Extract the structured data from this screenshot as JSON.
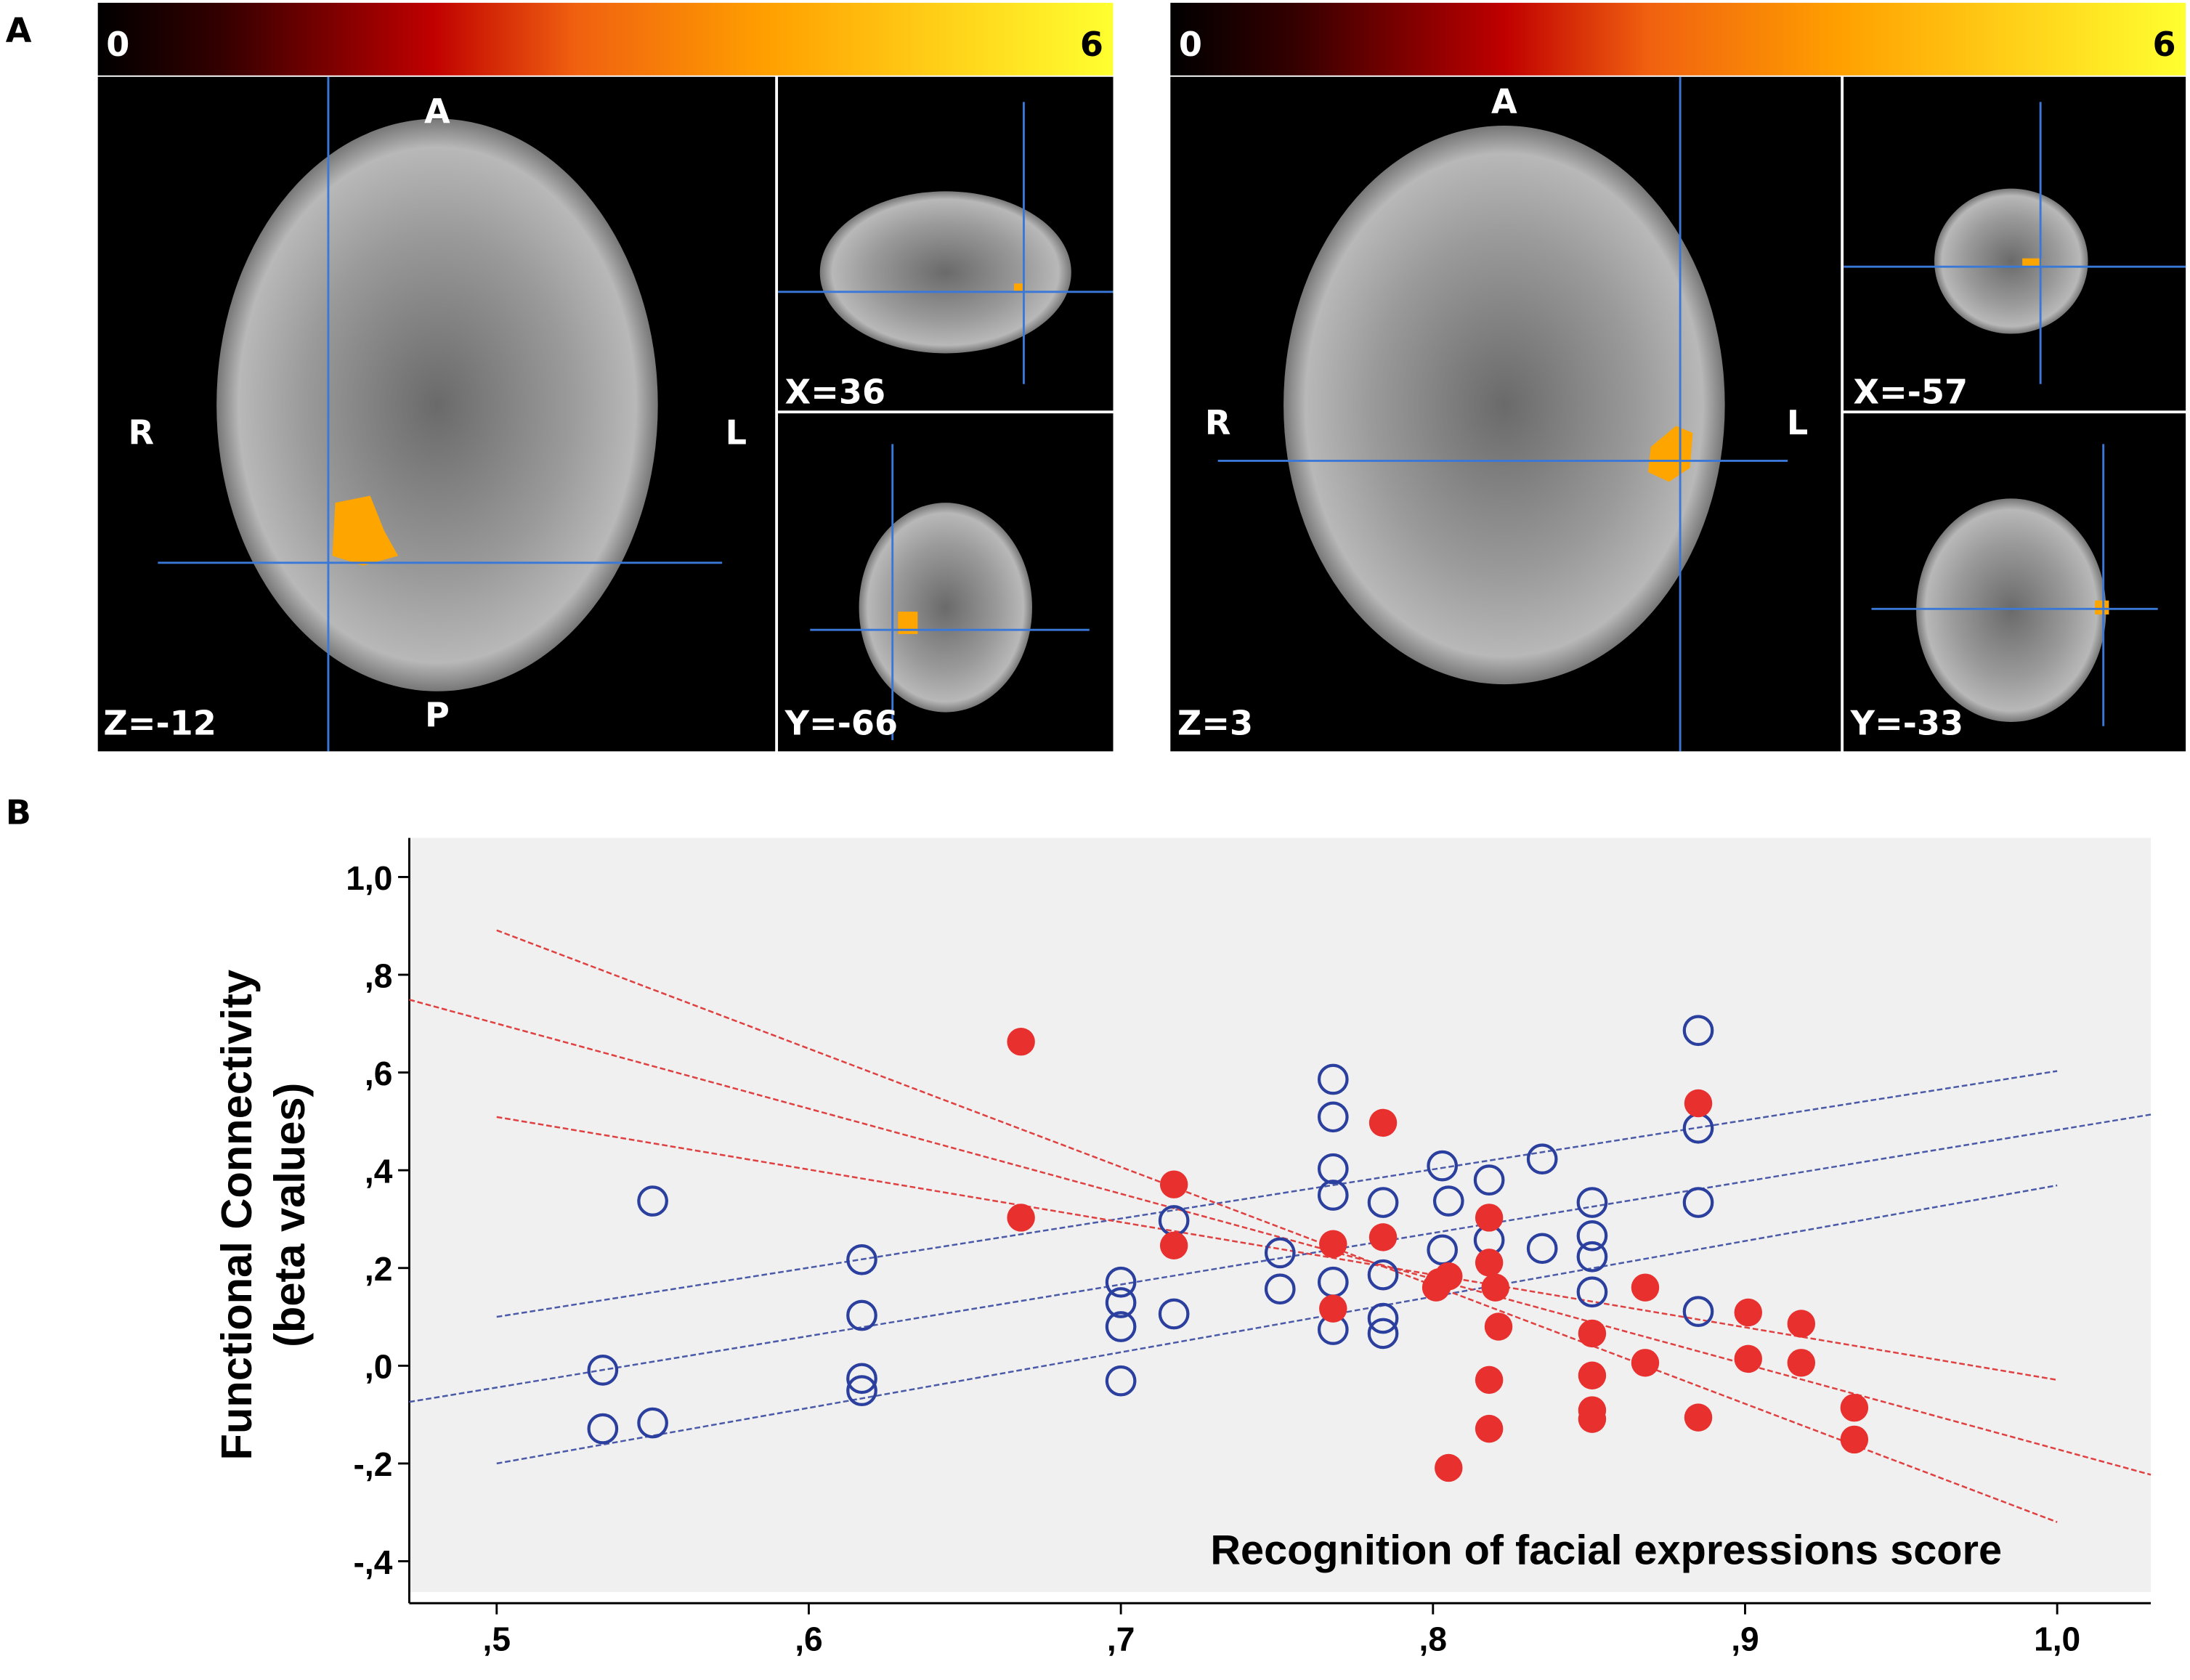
{
  "panel_label_a": "A",
  "panel_label_b": "B",
  "brain_views": [
    {
      "colorbar": {
        "min": 0,
        "max": 6
      },
      "axial": {
        "top": "A",
        "bottom": "P",
        "left": "R",
        "right": "L",
        "slice": "Z=-12"
      },
      "sagittal": "X=36",
      "coronal": "Y=-66"
    },
    {
      "colorbar": {
        "min": 0,
        "max": 6
      },
      "axial": {
        "top": "A",
        "left": "R",
        "right": "L",
        "slice": "Z=3"
      },
      "sagittal": "X=-57",
      "coronal": "Y=-33"
    }
  ],
  "chart_data": {
    "type": "scatter",
    "xlabel": "Recognition of facial expressions score",
    "ylabel": [
      "Functional Connectivity",
      "(beta values)"
    ],
    "xlim": [
      0.472,
      1.03
    ],
    "ylim": [
      -0.463,
      1.08
    ],
    "xticks": [
      {
        "value": 0.5,
        "label": ",5"
      },
      {
        "value": 0.6,
        "label": ",6"
      },
      {
        "value": 0.7,
        "label": ",7"
      },
      {
        "value": 0.8,
        "label": ",8"
      },
      {
        "value": 0.9,
        "label": ",9"
      },
      {
        "value": 1.0,
        "label": "1,0"
      }
    ],
    "yticks": [
      {
        "value": 1.0,
        "label": "1,0"
      },
      {
        "value": 0.8,
        "label": ",8"
      },
      {
        "value": 0.6,
        "label": ",6"
      },
      {
        "value": 0.4,
        "label": ",4"
      },
      {
        "value": 0.2,
        "label": ",2"
      },
      {
        "value": 0,
        "label": ",0"
      },
      {
        "value": -0.2,
        "label": "-,2"
      },
      {
        "value": -0.4,
        "label": "-,4"
      }
    ],
    "background": "#f0f0f0",
    "series": [
      {
        "color": "#2b3f9e",
        "marker": "open",
        "x": [
          0.534,
          0.534,
          0.55,
          0.55,
          0.617,
          0.617,
          0.617,
          0.617,
          0.7,
          0.7,
          0.7,
          0.7,
          0.717,
          0.717,
          0.751,
          0.751,
          0.768,
          0.768,
          0.768,
          0.768,
          0.768,
          0.768,
          0.784,
          0.784,
          0.784,
          0.784,
          0.803,
          0.805,
          0.803,
          0.818,
          0.818,
          0.835,
          0.835,
          0.851,
          0.851,
          0.851,
          0.851,
          0.885,
          0.885,
          0.885,
          0.885
        ],
        "values": [
          -0.009,
          -0.129,
          -0.117,
          0.337,
          0.217,
          0.103,
          -0.026,
          -0.051,
          0.171,
          0.129,
          0.08,
          -0.031,
          0.297,
          0.106,
          0.231,
          0.157,
          0.586,
          0.509,
          0.403,
          0.349,
          0.171,
          0.074,
          0.334,
          0.186,
          0.097,
          0.066,
          0.409,
          0.337,
          0.237,
          0.38,
          0.257,
          0.423,
          0.24,
          0.334,
          0.266,
          0.223,
          0.151,
          0.686,
          0.486,
          0.334,
          0.111
        ]
      },
      {
        "color": "#e8302f",
        "marker": "filled",
        "x": [
          0.668,
          0.668,
          0.717,
          0.717,
          0.784,
          0.784,
          0.768,
          0.768,
          0.802,
          0.805,
          0.801,
          0.818,
          0.818,
          0.82,
          0.821,
          0.818,
          0.818,
          0.805,
          0.851,
          0.851,
          0.851,
          0.851,
          0.868,
          0.868,
          0.885,
          0.885,
          0.901,
          0.901,
          0.918,
          0.918,
          0.935,
          0.935
        ],
        "values": [
          0.663,
          0.303,
          0.371,
          0.246,
          0.497,
          0.263,
          0.249,
          0.117,
          0.171,
          0.183,
          0.16,
          0.303,
          0.211,
          0.16,
          0.08,
          -0.029,
          -0.129,
          -0.209,
          0.066,
          -0.02,
          -0.091,
          -0.109,
          0.16,
          0.006,
          -0.106,
          0.537,
          0.109,
          0.014,
          0.086,
          0.006,
          -0.086,
          -0.151
        ]
      }
    ],
    "fit_lines": [
      {
        "color": "#4a5aa8",
        "x": [
          0.472,
          1.03
        ],
        "values": [
          -0.074,
          0.514
        ]
      },
      {
        "color": "#4a5aa8",
        "x": [
          0.5,
          1.0
        ],
        "values": [
          0.1,
          0.603
        ]
      },
      {
        "color": "#4a5aa8",
        "x": [
          0.5,
          1.0
        ],
        "values": [
          -0.2,
          0.369
        ]
      },
      {
        "color": "#e04040",
        "x": [
          0.472,
          1.03
        ],
        "values": [
          0.749,
          -0.223
        ]
      },
      {
        "color": "#e04040",
        "x": [
          0.5,
          1.0
        ],
        "values": [
          0.891,
          -0.32
        ]
      },
      {
        "color": "#e04040",
        "x": [
          0.5,
          1.0
        ],
        "values": [
          0.509,
          -0.029
        ]
      }
    ]
  }
}
